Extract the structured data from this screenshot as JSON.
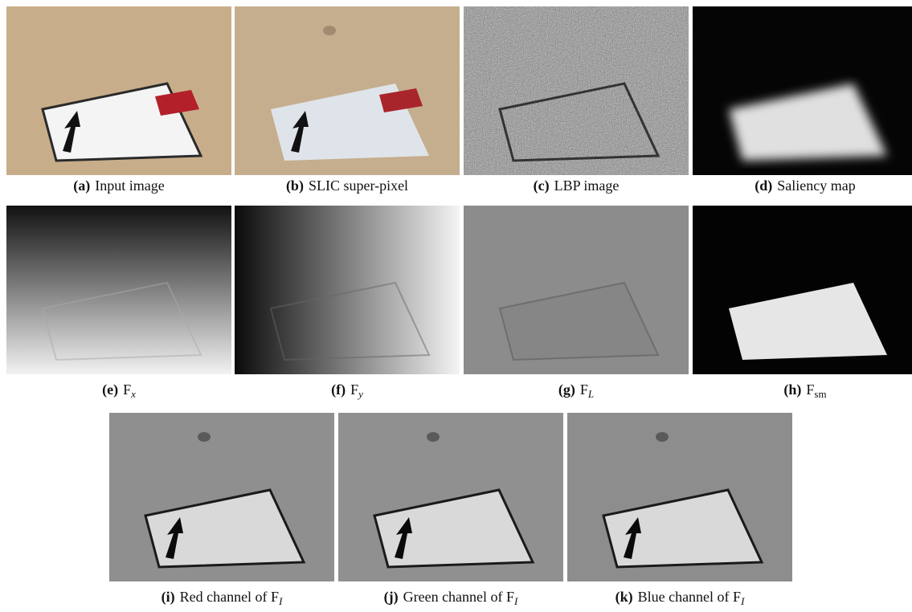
{
  "figure": {
    "panels": [
      {
        "label": "(a)",
        "text": "Input image"
      },
      {
        "label": "(b)",
        "text": "SLIC super-pixel"
      },
      {
        "label": "(c)",
        "text": "LBP image"
      },
      {
        "label": "(d)",
        "text": "Saliency map"
      },
      {
        "label": "(e)",
        "text": "F",
        "subscript": "x",
        "subscript_italic": true
      },
      {
        "label": "(f)",
        "text": "F",
        "subscript": "y",
        "subscript_italic": true
      },
      {
        "label": "(g)",
        "text": "F",
        "subscript": "L",
        "subscript_italic": true
      },
      {
        "label": "(h)",
        "text": "F",
        "subscript": "sm",
        "subscript_italic": false
      },
      {
        "label": "(i)",
        "text": "Red channel of F",
        "subscript": "I",
        "subscript_italic": true
      },
      {
        "label": "(j)",
        "text": "Green channel of F",
        "subscript": "I",
        "subscript_italic": true
      },
      {
        "label": "(k)",
        "text": "Blue channel of F",
        "subscript": "I",
        "subscript_italic": true
      }
    ]
  }
}
